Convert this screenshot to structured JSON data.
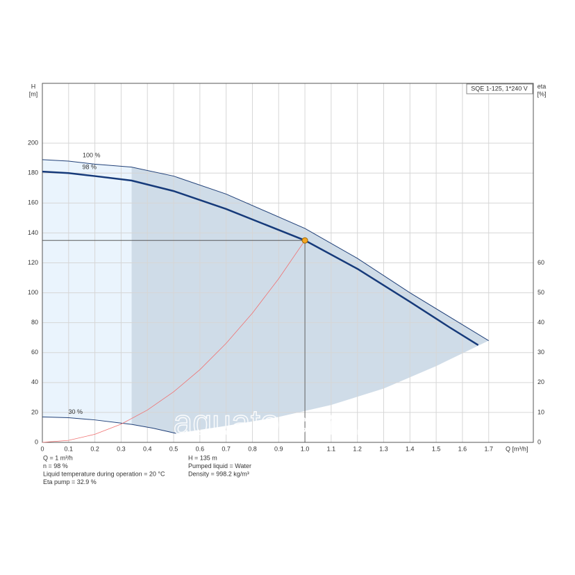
{
  "chart_data": {
    "type": "line",
    "title": "SQE 1-125, 1*240 V",
    "y_label": [
      "H",
      "[m]"
    ],
    "y2_label": [
      "eta",
      "[%]"
    ],
    "x_label": "Q [m³/h]",
    "watermark": "aquato.com.ua",
    "xlim": [
      0,
      1.87
    ],
    "ylim": [
      0,
      240
    ],
    "y2lim": [
      0,
      120
    ],
    "xticks": [
      0,
      0.1,
      0.2,
      0.3,
      0.4,
      0.5,
      0.6,
      0.7,
      0.8,
      0.9,
      {
        "value": 1,
        "label": "1.0"
      },
      1.1,
      1.2,
      1.3,
      1.4,
      1.5,
      1.6,
      1.7
    ],
    "yticks": [
      0,
      20,
      40,
      60,
      80,
      100,
      120,
      140,
      160,
      180,
      200
    ],
    "y2ticks": [
      0,
      10,
      20,
      30,
      40,
      50,
      60
    ],
    "grid": true,
    "series": [
      {
        "name": "100 %",
        "color": "#1f3f77",
        "x": [
          0,
          0.1,
          0.2,
          0.34,
          0.5,
          0.7,
          1.0,
          1.2,
          1.4,
          1.55,
          1.7
        ],
        "values": [
          189,
          188,
          186,
          184,
          178,
          166,
          143,
          123,
          100,
          84,
          68
        ]
      },
      {
        "name": "98 %",
        "color": "#163a7a",
        "x": [
          0,
          0.1,
          0.2,
          0.34,
          0.5,
          0.7,
          1.0,
          1.2,
          1.4,
          1.55,
          1.66
        ],
        "values": [
          181,
          180,
          178,
          175,
          168,
          156,
          135,
          116,
          94,
          77,
          65
        ]
      },
      {
        "name": "30 %",
        "color": "#1f3f77",
        "x": [
          0,
          0.1,
          0.2,
          0.34,
          0.42,
          0.51
        ],
        "values": [
          17,
          16.5,
          15,
          12,
          9.5,
          6
        ]
      },
      {
        "color": "#cfdce8",
        "x": [
          0.51,
          0.7,
          0.9,
          1.1,
          1.3,
          1.5,
          1.7
        ],
        "values": [
          6,
          11,
          17,
          25,
          36,
          51,
          68
        ]
      },
      {
        "color": "#f07070",
        "x": [
          0,
          0.1,
          0.2,
          0.3,
          0.4,
          0.5,
          0.6,
          0.7,
          0.8,
          0.9,
          1.0
        ],
        "values": [
          0,
          1.35,
          5.4,
          12.2,
          21.6,
          33.8,
          48.6,
          66.2,
          86.4,
          109.4,
          135
        ]
      }
    ],
    "operating_point": {
      "x": 1.0,
      "y": 135,
      "color": "#f5a623"
    },
    "info_left": [
      "Q = 1 m³/h",
      "n = 98 %",
      "Liquid temperature during operation = 20 °C",
      "Eta pump = 32.9 %"
    ],
    "info_right": [
      "H = 135 m",
      "Pumped liquid = Water",
      "Density = 998.2 kg/m³"
    ]
  }
}
